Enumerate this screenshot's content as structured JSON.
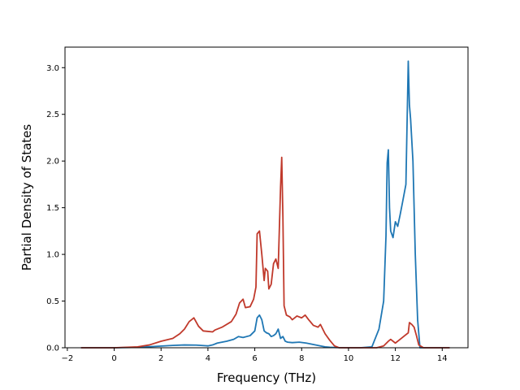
{
  "chart_data": {
    "type": "line",
    "title": "",
    "xlabel": "Frequency (THz)",
    "ylabel": "Partial Density of States",
    "xlim": [
      -2.1,
      15.1
    ],
    "ylim": [
      0,
      3.22
    ],
    "xticks": [
      -2,
      0,
      2,
      4,
      6,
      8,
      10,
      12,
      14
    ],
    "xtick_labels": [
      "−2",
      "0",
      "2",
      "4",
      "6",
      "8",
      "10",
      "12",
      "14"
    ],
    "yticks": [
      0.0,
      0.5,
      1.0,
      1.5,
      2.0,
      2.5,
      3.0
    ],
    "ytick_labels": [
      "0.0",
      "0.5",
      "1.0",
      "1.5",
      "2.0",
      "2.5",
      "3.0"
    ],
    "grid": false,
    "legend": "none",
    "series": [
      {
        "color": "#1f77b4",
        "x": [
          -1.4,
          0,
          1.0,
          1.8,
          2.5,
          3.0,
          3.5,
          4.0,
          4.2,
          4.4,
          4.8,
          5.1,
          5.3,
          5.5,
          5.8,
          6.0,
          6.1,
          6.2,
          6.3,
          6.4,
          6.5,
          6.6,
          6.7,
          6.8,
          6.9,
          7.0,
          7.1,
          7.2,
          7.3,
          7.4,
          7.6,
          7.9,
          8.2,
          8.5,
          8.8,
          9.0,
          9.2,
          9.5,
          10.0,
          10.5,
          11.0,
          11.3,
          11.5,
          11.6,
          11.65,
          11.7,
          11.75,
          11.8,
          11.9,
          12.0,
          12.1,
          12.2,
          12.3,
          12.45,
          12.55,
          12.6,
          12.65,
          12.75,
          12.85,
          12.95,
          13.05,
          13.2,
          13.5,
          14.0,
          14.3
        ],
        "y": [
          0,
          0,
          0.005,
          0.015,
          0.025,
          0.03,
          0.028,
          0.02,
          0.03,
          0.05,
          0.07,
          0.09,
          0.12,
          0.11,
          0.13,
          0.18,
          0.32,
          0.35,
          0.3,
          0.18,
          0.16,
          0.15,
          0.12,
          0.13,
          0.15,
          0.2,
          0.1,
          0.12,
          0.07,
          0.06,
          0.055,
          0.06,
          0.05,
          0.035,
          0.02,
          0.01,
          0.005,
          0.002,
          0,
          0,
          0.01,
          0.2,
          0.5,
          1.2,
          1.98,
          2.12,
          1.5,
          1.25,
          1.18,
          1.35,
          1.3,
          1.42,
          1.55,
          1.75,
          3.07,
          2.6,
          2.45,
          2.0,
          1.0,
          0.3,
          0,
          0,
          0,
          0,
          0
        ]
      },
      {
        "color": "#c0392b",
        "x": [
          -1.4,
          0,
          1.0,
          1.5,
          2.0,
          2.5,
          2.8,
          3.0,
          3.2,
          3.3,
          3.4,
          3.6,
          3.8,
          4.2,
          4.3,
          4.6,
          5.0,
          5.2,
          5.35,
          5.5,
          5.6,
          5.8,
          5.95,
          6.05,
          6.1,
          6.2,
          6.3,
          6.4,
          6.45,
          6.55,
          6.6,
          6.7,
          6.8,
          6.9,
          7.0,
          7.1,
          7.15,
          7.2,
          7.25,
          7.35,
          7.5,
          7.6,
          7.8,
          8.0,
          8.15,
          8.3,
          8.5,
          8.7,
          8.8,
          9.0,
          9.2,
          9.4,
          9.6,
          10.0,
          10.5,
          11.0,
          11.2,
          11.5,
          11.7,
          11.8,
          12.0,
          12.2,
          12.4,
          12.55,
          12.6,
          12.7,
          12.8,
          12.9,
          13.0,
          13.2,
          14.0,
          14.3
        ],
        "y": [
          0,
          0,
          0.01,
          0.03,
          0.07,
          0.1,
          0.15,
          0.2,
          0.28,
          0.3,
          0.32,
          0.23,
          0.18,
          0.17,
          0.19,
          0.22,
          0.28,
          0.36,
          0.48,
          0.52,
          0.43,
          0.44,
          0.52,
          0.65,
          1.22,
          1.25,
          1.0,
          0.72,
          0.85,
          0.82,
          0.63,
          0.68,
          0.9,
          0.95,
          0.85,
          1.72,
          2.04,
          1.4,
          0.45,
          0.35,
          0.33,
          0.3,
          0.34,
          0.32,
          0.35,
          0.3,
          0.24,
          0.22,
          0.25,
          0.15,
          0.08,
          0.02,
          0,
          0,
          0,
          0,
          0,
          0.02,
          0.07,
          0.09,
          0.05,
          0.09,
          0.13,
          0.16,
          0.27,
          0.25,
          0.22,
          0.13,
          0.03,
          0,
          0,
          0
        ]
      }
    ]
  }
}
